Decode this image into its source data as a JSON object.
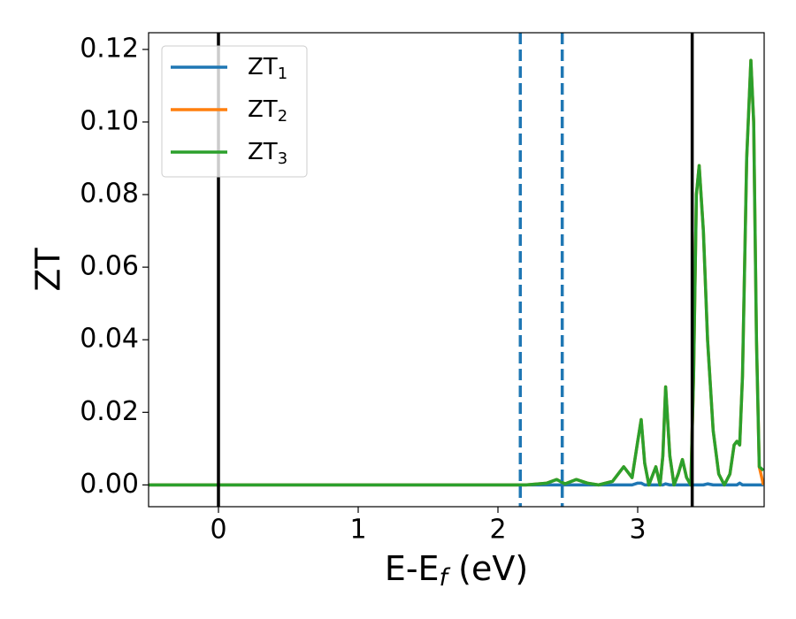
{
  "chart_data": {
    "type": "line",
    "x_label": {
      "main": "E-E",
      "subscript": "f",
      "suffix": " (eV)"
    },
    "y_label": "ZT",
    "x": [
      -0.5,
      2.0,
      2.2,
      2.35,
      2.42,
      2.48,
      2.56,
      2.64,
      2.72,
      2.82,
      2.9,
      2.96,
      3.0,
      3.025,
      3.05,
      3.08,
      3.1,
      3.13,
      3.16,
      3.18,
      3.2,
      3.23,
      3.26,
      3.29,
      3.32,
      3.35,
      3.38,
      3.4,
      3.42,
      3.44,
      3.47,
      3.5,
      3.54,
      3.58,
      3.62,
      3.66,
      3.69,
      3.71,
      3.73,
      3.75,
      3.78,
      3.81,
      3.83,
      3.85,
      3.87,
      3.9
    ],
    "series": [
      {
        "name": "ZT",
        "subscript": "1",
        "color": "#1f77b4",
        "values": [
          0,
          0,
          0,
          0,
          0,
          0,
          0,
          0,
          0,
          0,
          0,
          0,
          0.0005,
          0.0005,
          0,
          0,
          0,
          0,
          0,
          0,
          0.0003,
          0,
          0,
          0,
          0,
          0,
          0,
          0,
          0,
          0,
          0,
          0.0003,
          0,
          0,
          0,
          0,
          0,
          0,
          0.0005,
          0,
          0,
          0,
          0,
          0,
          0,
          0
        ]
      },
      {
        "name": "ZT",
        "subscript": "2",
        "color": "#ff7f0e",
        "values": [
          0,
          0,
          0,
          0.0005,
          0.0015,
          0.0003,
          0.0015,
          0.0005,
          0,
          0.001,
          0.005,
          0.002,
          0.012,
          0.018,
          0.006,
          0,
          0.002,
          0.005,
          0,
          0.008,
          0.027,
          0.008,
          0,
          0.003,
          0.007,
          0.002,
          0,
          0.03,
          0.08,
          0.088,
          0.07,
          0.04,
          0.015,
          0.003,
          0,
          0.003,
          0.011,
          0.012,
          0.011,
          0.03,
          0.09,
          0.117,
          0.1,
          0.04,
          0.005,
          0
        ]
      },
      {
        "name": "ZT",
        "subscript": "3",
        "color": "#2ca02c",
        "values": [
          0,
          0,
          0,
          0.0005,
          0.0015,
          0.0003,
          0.0015,
          0.0005,
          0,
          0.001,
          0.005,
          0.002,
          0.012,
          0.018,
          0.006,
          0,
          0.002,
          0.005,
          0,
          0.008,
          0.027,
          0.008,
          0,
          0.003,
          0.007,
          0.002,
          0,
          0.03,
          0.08,
          0.088,
          0.07,
          0.04,
          0.015,
          0.003,
          0,
          0.003,
          0.011,
          0.012,
          0.011,
          0.03,
          0.09,
          0.117,
          0.1,
          0.04,
          0.005,
          0.004
        ]
      }
    ],
    "vlines": [
      {
        "x": 0,
        "color": "#000000",
        "dashed": false
      },
      {
        "x": 2.16,
        "color": "#1f77b4",
        "dashed": true
      },
      {
        "x": 2.46,
        "color": "#1f77b4",
        "dashed": true
      },
      {
        "x": 3.39,
        "color": "#000000",
        "dashed": false
      }
    ],
    "xlim": [
      -0.5,
      3.905
    ],
    "ylim": [
      -0.006,
      0.1246
    ],
    "xticks": [
      0,
      1,
      2,
      3
    ],
    "yticks": [
      {
        "value": 0,
        "label": "0.00"
      },
      {
        "value": 0.02,
        "label": "0.02"
      },
      {
        "value": 0.04,
        "label": "0.04"
      },
      {
        "value": 0.06,
        "label": "0.06"
      },
      {
        "value": 0.08,
        "label": "0.08"
      },
      {
        "value": 0.1,
        "label": "0.10"
      },
      {
        "value": 0.12,
        "label": "0.12"
      }
    ],
    "legend": "upper left"
  }
}
